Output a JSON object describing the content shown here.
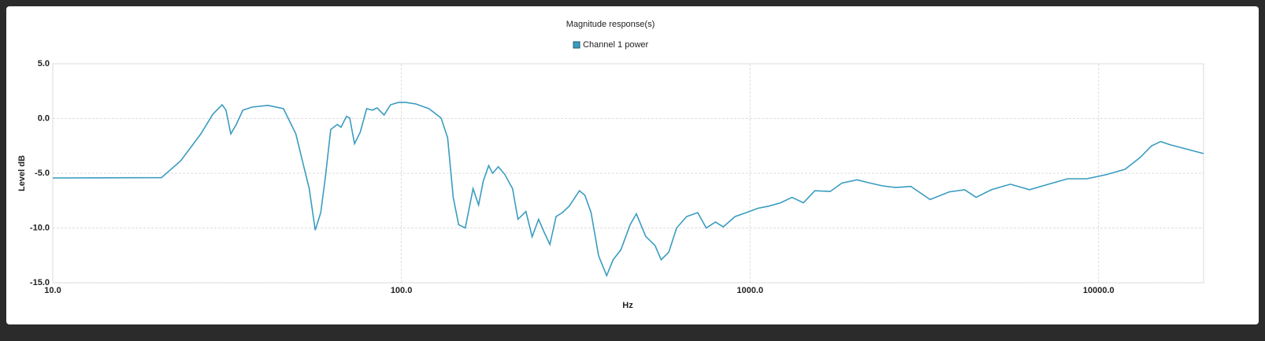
{
  "chart_data": {
    "type": "line",
    "title": "Magnitude response(s)",
    "x_label": "Hz",
    "y_label": "Level dB",
    "x_scale": "log",
    "grid": true,
    "legend": "top",
    "x": [
      10,
      20.5,
      23.3,
      26.6,
      28.8,
      30.6,
      31.4,
      32.4,
      33.6,
      35.1,
      37.3,
      41.4,
      45.9,
      49.8,
      52.4,
      54.4,
      56.6,
      58.7,
      60.5,
      62.7,
      65.5,
      67.1,
      69.6,
      71.1,
      73.4,
      76.2,
      79.5,
      82.6,
      85.2,
      89.2,
      93.1,
      98.1,
      103,
      110,
      120,
      130,
      135.7,
      140.8,
      146,
      152.5,
      160.6,
      166.5,
      171.8,
      178,
      182.7,
      189.6,
      197.9,
      208.4,
      216,
      227.6,
      237.2,
      247.5,
      256.9,
      266.7,
      277.8,
      289.5,
      303,
      324,
      336,
      350,
      368,
      388,
      405,
      426,
      453,
      472,
      502,
      534,
      556,
      585,
      616,
      658,
      708,
      749,
      796,
      838,
      906,
      976,
      1053,
      1134,
      1224,
      1320,
      1423,
      1535,
      1699,
      1834,
      2028,
      2188,
      2398,
      2614,
      2893,
      3285,
      3730,
      4128,
      4453,
      4925,
      5584,
      6330,
      7183,
      8148,
      9245,
      10490,
      11900,
      13150,
      14180,
      15060,
      16060,
      20000
    ],
    "series": [
      {
        "name": "Channel 1 power",
        "color": "#3a9cc0",
        "values": [
          -5.43,
          -5.4,
          -3.85,
          -1.4,
          0.4,
          1.26,
          0.76,
          -1.4,
          -0.54,
          0.76,
          1.04,
          1.2,
          0.9,
          -1.4,
          -4.3,
          -6.4,
          -10.2,
          -8.6,
          -5.4,
          -1.0,
          -0.54,
          -0.8,
          0.2,
          0.04,
          -2.3,
          -1.26,
          0.9,
          0.76,
          0.97,
          0.32,
          1.26,
          1.47,
          1.47,
          1.33,
          0.9,
          0.04,
          -1.76,
          -7.2,
          -9.7,
          -10.0,
          -6.4,
          -7.9,
          -5.7,
          -4.3,
          -5.0,
          -4.4,
          -5.1,
          -6.4,
          -9.2,
          -8.5,
          -10.8,
          -9.2,
          -10.4,
          -11.5,
          -8.96,
          -8.6,
          -8.0,
          -6.6,
          -7.0,
          -8.6,
          -12.55,
          -14.35,
          -12.9,
          -12.0,
          -9.7,
          -8.7,
          -10.76,
          -11.6,
          -12.9,
          -12.2,
          -10.0,
          -8.96,
          -8.6,
          -10.0,
          -9.46,
          -9.9,
          -8.96,
          -8.6,
          -8.2,
          -8.0,
          -7.7,
          -7.2,
          -7.7,
          -6.6,
          -6.66,
          -5.9,
          -5.6,
          -5.86,
          -6.15,
          -6.3,
          -6.2,
          -7.4,
          -6.7,
          -6.5,
          -7.2,
          -6.5,
          -6.0,
          -6.5,
          -6.0,
          -5.5,
          -5.5,
          -5.14,
          -4.64,
          -3.56,
          -2.5,
          -2.1,
          -2.4,
          -3.2
        ]
      }
    ],
    "xlim": [
      10,
      20000
    ],
    "xticks": [
      {
        "value": 10,
        "label": "10.0"
      },
      {
        "value": 100,
        "label": "100.0"
      },
      {
        "value": 1000,
        "label": "1000.0"
      },
      {
        "value": 10000,
        "label": "10000.0"
      }
    ],
    "ylim": [
      -15,
      5
    ],
    "yticks": [
      {
        "value": 5,
        "label": "5.0"
      },
      {
        "value": 0,
        "label": "0.0"
      },
      {
        "value": -5,
        "label": "-5.0"
      },
      {
        "value": -10,
        "label": "-10.0"
      },
      {
        "value": -15,
        "label": "-15.0"
      }
    ]
  }
}
